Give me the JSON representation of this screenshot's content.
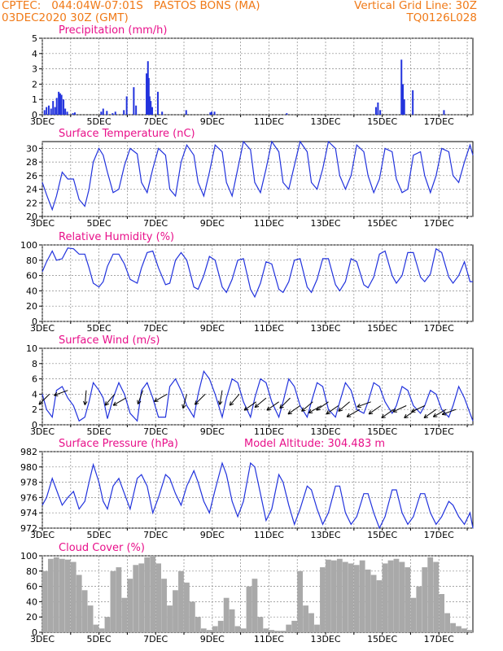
{
  "header": {
    "line1_left": "CPTEC:   044:04W-07:01S   PASTOS BONS (MA)",
    "line2_left": "03DEC2020 30Z (GMT)",
    "line1_right": "Vertical Grid Line: 30Z",
    "line2_right": "TQ0126L028"
  },
  "colors": {
    "header": "#f07a18",
    "title": "#e8108a",
    "line": "#2233dd",
    "cloud": "#a9a9a9"
  },
  "chart_data": [
    {
      "type": "bar",
      "title": "Precipitation (mm/h)",
      "ylim": [
        0,
        5
      ],
      "yticks": [
        "0",
        "1",
        "2",
        "3",
        "4",
        "5"
      ],
      "xticks": [
        "3DEC",
        "5DEC",
        "7DEC",
        "9DEC",
        "11DEC",
        "13DEC",
        "15DEC",
        "17DEC"
      ],
      "x_start_day": 3,
      "x_end_day": 18.2,
      "x_day": [
        3.05,
        3.12,
        3.2,
        3.28,
        3.35,
        3.42,
        3.48,
        3.55,
        3.6,
        3.65,
        3.72,
        3.78,
        3.85,
        4.05,
        4.12,
        5.05,
        5.12,
        5.25,
        5.45,
        5.55,
        5.85,
        5.95,
        6.2,
        6.28,
        6.65,
        6.7,
        6.73,
        6.76,
        6.8,
        6.85,
        7.05,
        7.2,
        8.05,
        8.9,
        8.95,
        9.05,
        11.6,
        14.75,
        14.82,
        14.9,
        15.65,
        15.7,
        15.75,
        16.05,
        17.15
      ],
      "values": [
        0.3,
        0.5,
        0.6,
        0.4,
        0.9,
        0.5,
        1.1,
        1.5,
        1.4,
        1.3,
        1.0,
        0.4,
        0.2,
        0.1,
        0.15,
        0.2,
        0.4,
        0.25,
        0.1,
        0.2,
        0.3,
        1.2,
        1.8,
        0.6,
        2.7,
        3.5,
        2.4,
        1.2,
        0.9,
        0.5,
        1.5,
        0.2,
        0.3,
        0.15,
        0.2,
        0.2,
        0.1,
        0.5,
        0.8,
        0.3,
        3.6,
        2.0,
        1.0,
        1.6,
        0.3
      ],
      "color": "#2233dd"
    },
    {
      "type": "line",
      "title": "Surface Temperature (nC)",
      "ylim": [
        20,
        31
      ],
      "yticks": [
        "20",
        "22",
        "24",
        "26",
        "28",
        "30"
      ],
      "xticks": [
        "3DEC",
        "5DEC",
        "7DEC",
        "9DEC",
        "11DEC",
        "13DEC",
        "15DEC",
        "17DEC"
      ],
      "x_start_day": 3,
      "x_end_day": 18.2,
      "x_day": [
        3.0,
        3.15,
        3.35,
        3.5,
        3.7,
        3.9,
        4.1,
        4.3,
        4.5,
        4.65,
        4.8,
        5.0,
        5.15,
        5.3,
        5.5,
        5.7,
        5.9,
        6.1,
        6.35,
        6.5,
        6.7,
        6.9,
        7.1,
        7.35,
        7.5,
        7.7,
        7.9,
        8.1,
        8.35,
        8.5,
        8.7,
        8.9,
        9.1,
        9.35,
        9.5,
        9.7,
        9.9,
        10.1,
        10.35,
        10.5,
        10.7,
        10.9,
        11.1,
        11.35,
        11.5,
        11.7,
        11.9,
        12.1,
        12.35,
        12.5,
        12.7,
        12.9,
        13.1,
        13.35,
        13.5,
        13.7,
        13.9,
        14.1,
        14.35,
        14.5,
        14.7,
        14.9,
        15.1,
        15.35,
        15.5,
        15.7,
        15.9,
        16.1,
        16.35,
        16.5,
        16.7,
        16.9,
        17.1,
        17.35,
        17.5,
        17.7,
        17.9,
        18.1,
        18.2
      ],
      "values": [
        25,
        23.2,
        21,
        23,
        26.5,
        25.5,
        25.5,
        22.5,
        21.5,
        24,
        28,
        30,
        29,
        26.5,
        23.5,
        24,
        27.5,
        30,
        29.2,
        25,
        23.5,
        27,
        30,
        29,
        24,
        23,
        28,
        30.5,
        29,
        25,
        23,
        26.5,
        30.5,
        29.5,
        25,
        23,
        27,
        31,
        29.8,
        25,
        23.5,
        27,
        31,
        29.5,
        25,
        24,
        27.5,
        31,
        29.5,
        25,
        24,
        27,
        31,
        30,
        26,
        24,
        26,
        30.5,
        29.5,
        26,
        23.5,
        25.5,
        30,
        29.5,
        25.5,
        23.5,
        24,
        29,
        29.5,
        26,
        23.5,
        26,
        30,
        29.5,
        26,
        25,
        28,
        30.5,
        29
      ],
      "color": "#2233dd"
    },
    {
      "type": "line",
      "title": "Relative Humidity (%)",
      "ylim": [
        0,
        100
      ],
      "yticks": [
        "0",
        "20",
        "40",
        "60",
        "80",
        "100"
      ],
      "xticks": [
        "3DEC",
        "5DEC",
        "7DEC",
        "9DEC",
        "11DEC",
        "13DEC",
        "15DEC",
        "17DEC"
      ],
      "x_start_day": 3,
      "x_end_day": 18.2,
      "x_day": [
        3.0,
        3.15,
        3.35,
        3.5,
        3.7,
        3.9,
        4.1,
        4.3,
        4.5,
        4.65,
        4.8,
        5.0,
        5.15,
        5.3,
        5.5,
        5.7,
        5.9,
        6.1,
        6.35,
        6.5,
        6.7,
        6.9,
        7.1,
        7.35,
        7.5,
        7.7,
        7.9,
        8.1,
        8.35,
        8.5,
        8.7,
        8.9,
        9.1,
        9.35,
        9.5,
        9.7,
        9.9,
        10.1,
        10.35,
        10.5,
        10.7,
        10.9,
        11.1,
        11.35,
        11.5,
        11.7,
        11.9,
        12.1,
        12.35,
        12.5,
        12.7,
        12.9,
        13.1,
        13.35,
        13.5,
        13.7,
        13.9,
        14.1,
        14.35,
        14.5,
        14.7,
        14.9,
        15.1,
        15.35,
        15.5,
        15.7,
        15.9,
        16.1,
        16.35,
        16.5,
        16.7,
        16.9,
        17.1,
        17.35,
        17.5,
        17.7,
        17.9,
        18.1,
        18.2
      ],
      "values": [
        65,
        78,
        92,
        80,
        82,
        96,
        95,
        88,
        88,
        70,
        50,
        45,
        52,
        72,
        88,
        88,
        75,
        55,
        50,
        70,
        90,
        92,
        70,
        48,
        50,
        80,
        90,
        80,
        45,
        42,
        60,
        85,
        80,
        45,
        38,
        55,
        80,
        82,
        42,
        32,
        50,
        78,
        75,
        42,
        38,
        52,
        80,
        82,
        45,
        38,
        55,
        82,
        82,
        48,
        40,
        52,
        82,
        78,
        48,
        44,
        58,
        88,
        92,
        60,
        50,
        60,
        90,
        90,
        58,
        52,
        62,
        95,
        90,
        58,
        50,
        60,
        78,
        52,
        52
      ],
      "color": "#2233dd"
    },
    {
      "type": "line",
      "title": "Surface Wind (m/s)",
      "ylim": [
        0,
        10
      ],
      "yticks": [
        "0",
        "2",
        "4",
        "6",
        "8",
        "10"
      ],
      "xticks": [
        "3DEC",
        "5DEC",
        "7DEC",
        "9DEC",
        "11DEC",
        "13DEC",
        "15DEC",
        "17DEC"
      ],
      "x_start_day": 3,
      "x_end_day": 18.2,
      "x_day": [
        3.0,
        3.15,
        3.35,
        3.5,
        3.7,
        3.9,
        4.1,
        4.3,
        4.5,
        4.65,
        4.8,
        5.0,
        5.15,
        5.3,
        5.5,
        5.7,
        5.9,
        6.1,
        6.35,
        6.5,
        6.7,
        6.9,
        7.1,
        7.35,
        7.5,
        7.7,
        7.9,
        8.1,
        8.35,
        8.5,
        8.7,
        8.9,
        9.1,
        9.35,
        9.5,
        9.7,
        9.9,
        10.1,
        10.35,
        10.5,
        10.7,
        10.9,
        11.1,
        11.35,
        11.5,
        11.7,
        11.9,
        12.1,
        12.35,
        12.5,
        12.7,
        12.9,
        13.1,
        13.35,
        13.5,
        13.7,
        13.9,
        14.1,
        14.35,
        14.5,
        14.7,
        14.9,
        15.1,
        15.35,
        15.5,
        15.7,
        15.9,
        16.1,
        16.35,
        16.5,
        16.7,
        16.9,
        17.1,
        17.35,
        17.5,
        17.7,
        17.9,
        18.1,
        18.2
      ],
      "values": [
        4,
        2,
        1,
        4.5,
        5,
        3.5,
        2.5,
        0.5,
        1,
        3,
        5.5,
        4.5,
        3.5,
        0.8,
        3.5,
        5.5,
        4,
        1.5,
        0.5,
        4.5,
        5.5,
        3.5,
        1,
        1,
        5,
        6,
        4.5,
        2.5,
        1,
        4,
        7,
        6,
        4,
        1,
        3.5,
        6,
        5.5,
        3,
        1,
        3.5,
        6,
        5.5,
        3,
        1,
        3,
        6,
        5,
        2.5,
        1,
        3,
        5.5,
        5,
        2,
        1,
        3,
        5.5,
        4.5,
        2,
        1.5,
        3,
        5.5,
        5,
        3,
        1.5,
        2.5,
        5,
        4.5,
        2.5,
        1.5,
        2.5,
        4.5,
        4,
        2,
        1,
        2.5,
        5,
        3.5,
        1.5,
        0.5
      ],
      "wind_arrows": {
        "x_day": [
          3.25,
          3.9,
          4.55,
          5.55,
          5.95,
          6.55,
          7.4,
          8.1,
          8.75,
          9.35,
          9.95,
          10.55,
          10.9,
          11.35,
          11.75,
          12.1,
          12.55,
          12.85,
          13.1,
          13.45,
          13.85,
          14.2,
          14.6,
          14.95,
          15.4,
          15.85,
          16.2,
          16.5,
          16.9,
          17.25,
          17.6
        ],
        "speed": [
          4,
          4.5,
          4.5,
          4,
          3.5,
          4.5,
          4,
          4,
          4,
          4.5,
          4,
          3,
          3.5,
          3,
          3.5,
          2.5,
          3,
          2.5,
          3,
          2.5,
          3,
          2,
          3,
          2.5,
          2,
          2.5,
          2,
          2.5,
          2,
          2,
          2
        ],
        "dir_deg": [
          225,
          200,
          265,
          230,
          210,
          250,
          210,
          255,
          225,
          260,
          230,
          215,
          220,
          215,
          225,
          215,
          220,
          210,
          215,
          215,
          220,
          210,
          200,
          215,
          215,
          205,
          215,
          205,
          215,
          210,
          200
        ]
      },
      "color": "#2233dd"
    },
    {
      "type": "line",
      "title": "Surface Pressure (hPa)",
      "annotation": "Model Altitude: 304.483 m",
      "ylim": [
        972,
        982
      ],
      "yticks": [
        "972",
        "974",
        "976",
        "978",
        "980",
        "982"
      ],
      "xticks": [
        "3DEC",
        "5DEC",
        "7DEC",
        "9DEC",
        "11DEC",
        "13DEC",
        "15DEC",
        "17DEC"
      ],
      "x_start_day": 3,
      "x_end_day": 18.2,
      "x_day": [
        3.0,
        3.15,
        3.35,
        3.5,
        3.7,
        3.9,
        4.1,
        4.3,
        4.5,
        4.65,
        4.8,
        5.0,
        5.15,
        5.3,
        5.5,
        5.7,
        5.9,
        6.1,
        6.35,
        6.5,
        6.7,
        6.9,
        7.1,
        7.35,
        7.5,
        7.7,
        7.9,
        8.1,
        8.35,
        8.5,
        8.7,
        8.9,
        9.1,
        9.35,
        9.5,
        9.7,
        9.9,
        10.1,
        10.35,
        10.5,
        10.7,
        10.9,
        11.1,
        11.35,
        11.5,
        11.7,
        11.9,
        12.1,
        12.35,
        12.5,
        12.7,
        12.9,
        13.1,
        13.35,
        13.5,
        13.7,
        13.9,
        14.1,
        14.35,
        14.5,
        14.7,
        14.9,
        15.1,
        15.35,
        15.5,
        15.7,
        15.9,
        16.1,
        16.35,
        16.5,
        16.7,
        16.9,
        17.1,
        17.35,
        17.5,
        17.7,
        17.9,
        18.1,
        18.2
      ],
      "values": [
        975,
        976,
        978.5,
        977,
        975,
        976,
        976.8,
        974.5,
        975.5,
        978,
        980.3,
        978,
        975.5,
        974.5,
        977.5,
        978.5,
        976.5,
        974.5,
        978.5,
        979,
        977.5,
        974,
        976,
        979,
        978.5,
        976.5,
        975,
        977.5,
        979.5,
        978,
        975.5,
        974,
        977,
        980.5,
        979,
        975.5,
        973.5,
        975.5,
        980.5,
        980,
        976.5,
        973,
        974.5,
        979,
        978,
        975,
        972.5,
        974.5,
        977.5,
        977,
        974.5,
        972.5,
        974,
        977.5,
        977.5,
        974,
        972.5,
        973.5,
        976.5,
        976.5,
        974,
        972,
        973.5,
        977,
        977,
        974,
        972.5,
        973.5,
        976.5,
        976.5,
        974,
        972.5,
        973.5,
        975.5,
        975,
        973.5,
        972.5,
        974,
        972
      ],
      "color": "#2233dd"
    },
    {
      "type": "bar",
      "title": "Cloud Cover (%)",
      "ylim": [
        0,
        100
      ],
      "yticks": [
        "0",
        "20",
        "40",
        "60",
        "80",
        "100"
      ],
      "xticks": [
        "3DEC",
        "5DEC",
        "7DEC",
        "9DEC",
        "11DEC",
        "13DEC",
        "15DEC",
        "17DEC"
      ],
      "x_start_day": 3,
      "x_end_day": 18.2,
      "x_day": [
        3.0,
        3.2,
        3.4,
        3.6,
        3.8,
        4.0,
        4.2,
        4.4,
        4.6,
        4.8,
        5.0,
        5.2,
        5.4,
        5.6,
        5.8,
        6.0,
        6.2,
        6.4,
        6.6,
        6.8,
        7.0,
        7.2,
        7.4,
        7.6,
        7.8,
        8.0,
        8.2,
        8.4,
        8.6,
        8.8,
        9.0,
        9.2,
        9.4,
        9.6,
        9.8,
        10.0,
        10.2,
        10.4,
        10.6,
        10.8,
        11.0,
        11.2,
        11.4,
        11.6,
        11.8,
        12.0,
        12.2,
        12.4,
        12.6,
        12.8,
        13.0,
        13.2,
        13.4,
        13.6,
        13.8,
        14.0,
        14.2,
        14.4,
        14.6,
        14.8,
        15.0,
        15.2,
        15.4,
        15.6,
        15.8,
        16.0,
        16.2,
        16.4,
        16.6,
        16.8,
        17.0,
        17.2,
        17.4,
        17.6,
        17.8,
        18.0
      ],
      "values": [
        80,
        96,
        98,
        96,
        95,
        92,
        75,
        55,
        35,
        10,
        5,
        20,
        80,
        85,
        45,
        70,
        88,
        90,
        98,
        100,
        90,
        70,
        35,
        55,
        80,
        65,
        40,
        20,
        5,
        3,
        8,
        15,
        45,
        30,
        8,
        5,
        60,
        70,
        20,
        5,
        3,
        2,
        2,
        10,
        15,
        80,
        35,
        25,
        10,
        85,
        95,
        94,
        96,
        92,
        90,
        88,
        94,
        82,
        75,
        68,
        90,
        94,
        96,
        92,
        85,
        45,
        60,
        85,
        98,
        92,
        50,
        25,
        12,
        8,
        5,
        3
      ],
      "color": "#a9a9a9"
    }
  ]
}
